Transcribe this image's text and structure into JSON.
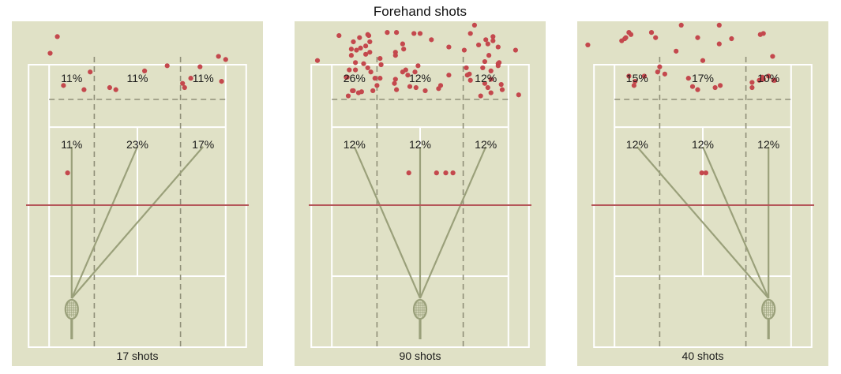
{
  "title": "Forehand shots",
  "colors": {
    "court": "#e0e1c6",
    "lines": "#ffffff",
    "zone_divider": "#8f8f78",
    "shot_line": "#9aa07a",
    "net": "#b5575a",
    "dot": "#c4484d"
  },
  "icons": {
    "racket": "tennis-racket-icon"
  },
  "chart_data": [
    {
      "type": "scatter",
      "shots_label": "17 shots",
      "zones": {
        "deep": [
          "11%",
          "11%",
          "11%"
        ],
        "short": [
          "11%",
          "23%",
          "17%"
        ]
      },
      "racket_position": "left",
      "points": [
        [
          -7.8,
          16.2
        ],
        [
          -8.5,
          14.6
        ],
        [
          -7.2,
          11.5
        ],
        [
          -5.2,
          11.1
        ],
        [
          -4.6,
          12.8
        ],
        [
          -2.7,
          11.3
        ],
        [
          -2.1,
          11.1
        ],
        [
          0.7,
          12.9
        ],
        [
          2.9,
          13.4
        ],
        [
          4.4,
          11.7
        ],
        [
          4.6,
          11.3
        ],
        [
          5.2,
          12.2
        ],
        [
          6.1,
          13.3
        ],
        [
          7.9,
          14.3
        ],
        [
          8.6,
          14.0
        ],
        [
          8.2,
          11.9
        ],
        [
          -6.8,
          3.1
        ]
      ]
    },
    {
      "type": "scatter",
      "shots_label": "90 shots",
      "zones": {
        "deep": [
          "26%",
          "12%",
          "12%"
        ],
        "short": [
          "12%",
          "12%",
          "12%"
        ]
      },
      "racket_position": "center",
      "points": [
        [
          -10.0,
          13.9
        ],
        [
          -7.0,
          10.5
        ],
        [
          -6.7,
          14.4
        ],
        [
          -6.3,
          13.0
        ],
        [
          -6.5,
          11.0
        ],
        [
          -7.1,
          12.3
        ],
        [
          -6.0,
          10.8
        ],
        [
          -5.5,
          13.6
        ],
        [
          -4.4,
          12.2
        ],
        [
          -1.2,
          12.5
        ],
        [
          -2.4,
          14.7
        ],
        [
          -0.4,
          11.3
        ],
        [
          2.8,
          15.2
        ],
        [
          4.8,
          12.6
        ],
        [
          6.6,
          11.3
        ],
        [
          7.6,
          13.6
        ],
        [
          6.9,
          10.8
        ],
        [
          8.0,
          11.1
        ],
        [
          9.6,
          10.6
        ],
        [
          6.7,
          14.4
        ],
        [
          9.3,
          14.9
        ],
        [
          7.6,
          13.4
        ],
        [
          -6.9,
          13.0
        ],
        [
          -5.1,
          16.4
        ],
        [
          -4.9,
          15.7
        ],
        [
          -6.5,
          15.7
        ],
        [
          -5.3,
          15.3
        ],
        [
          -6.2,
          14.9
        ],
        [
          -4.9,
          14.7
        ],
        [
          -5.9,
          16.1
        ],
        [
          -5.0,
          16.3
        ],
        [
          -5.8,
          15.1
        ],
        [
          -5.3,
          14.5
        ],
        [
          -6.3,
          13.7
        ],
        [
          -4.8,
          12.8
        ],
        [
          -3.9,
          14.1
        ],
        [
          -2.4,
          14.4
        ],
        [
          -6.7,
          15.0
        ],
        [
          -3.9,
          12.2
        ],
        [
          -0.2,
          13.4
        ],
        [
          -0.5,
          12.8
        ],
        [
          -7.9,
          16.3
        ],
        [
          -3.2,
          16.6
        ],
        [
          -1.4,
          13.0
        ],
        [
          -0.6,
          16.5
        ],
        [
          -1.7,
          15.5
        ],
        [
          4.5,
          13.2
        ],
        [
          4.9,
          16.5
        ],
        [
          5.7,
          15.4
        ],
        [
          7.6,
          15.2
        ],
        [
          7.1,
          16.2
        ],
        [
          6.3,
          13.8
        ],
        [
          -1.7,
          12.8
        ],
        [
          -4.2,
          11.5
        ],
        [
          -2.3,
          11.1
        ],
        [
          0.0,
          16.5
        ],
        [
          -2.3,
          16.6
        ],
        [
          2.8,
          12.5
        ],
        [
          6.9,
          12.1
        ],
        [
          7.9,
          11.6
        ],
        [
          4.3,
          14.9
        ],
        [
          6.6,
          15.5
        ],
        [
          0.5,
          11.0
        ],
        [
          -6.6,
          11.0
        ],
        [
          -3.8,
          13.5
        ],
        [
          4.9,
          12.0
        ],
        [
          4.6,
          12.5
        ],
        [
          6.3,
          11.7
        ],
        [
          7.1,
          15.8
        ],
        [
          6.9,
          12.9
        ],
        [
          5.3,
          17.3
        ],
        [
          6.4,
          15.9
        ],
        [
          6.1,
          13.2
        ],
        [
          2.0,
          11.5
        ],
        [
          -4.6,
          11.0
        ],
        [
          -1.0,
          11.4
        ],
        [
          -2.4,
          12.1
        ],
        [
          1.8,
          11.2
        ],
        [
          -2.5,
          11.7
        ],
        [
          -1.6,
          15.0
        ],
        [
          7.7,
          13.7
        ],
        [
          5.9,
          10.5
        ],
        [
          -5.1,
          13.2
        ],
        [
          -7.2,
          12.3
        ],
        [
          -5.7,
          10.9
        ],
        [
          -1.1,
          3.1
        ],
        [
          1.6,
          3.1
        ],
        [
          2.5,
          3.1
        ],
        [
          3.2,
          3.1
        ],
        [
          1.1,
          15.9
        ]
      ]
    },
    {
      "type": "scatter",
      "shots_label": "40 shots",
      "zones": {
        "deep": [
          "15%",
          "17%",
          "10%"
        ],
        "short": [
          "12%",
          "12%",
          "12%"
        ]
      },
      "racket_position": "right",
      "points": [
        [
          -11.2,
          15.4
        ],
        [
          -7.9,
          15.8
        ],
        [
          -7.6,
          16.0
        ],
        [
          -7.5,
          16.1
        ],
        [
          -7.2,
          16.6
        ],
        [
          -7.0,
          16.4
        ],
        [
          -5.0,
          16.6
        ],
        [
          -4.4,
          12.8
        ],
        [
          -4.2,
          13.3
        ],
        [
          -2.6,
          14.8
        ],
        [
          -4.6,
          16.1
        ],
        [
          -2.1,
          17.3
        ],
        [
          -0.5,
          16.1
        ],
        [
          1.6,
          17.3
        ],
        [
          1.6,
          15.5
        ],
        [
          2.8,
          16.0
        ],
        [
          0.0,
          13.9
        ],
        [
          -1.4,
          12.2
        ],
        [
          -3.7,
          12.6
        ],
        [
          -7.2,
          12.4
        ],
        [
          -6.7,
          11.5
        ],
        [
          -6.6,
          11.9
        ],
        [
          -5.7,
          12.4
        ],
        [
          1.7,
          11.5
        ],
        [
          -1.0,
          11.4
        ],
        [
          -0.5,
          11.1
        ],
        [
          1.2,
          11.3
        ],
        [
          4.8,
          11.3
        ],
        [
          4.8,
          11.8
        ],
        [
          5.5,
          12.0
        ],
        [
          5.8,
          12.3
        ],
        [
          5.9,
          12.1
        ],
        [
          6.4,
          12.4
        ],
        [
          6.9,
          12.0
        ],
        [
          7.0,
          12.0
        ],
        [
          5.6,
          16.4
        ],
        [
          5.9,
          16.5
        ],
        [
          6.8,
          14.3
        ],
        [
          -0.1,
          3.1
        ],
        [
          0.3,
          3.1
        ]
      ]
    }
  ]
}
